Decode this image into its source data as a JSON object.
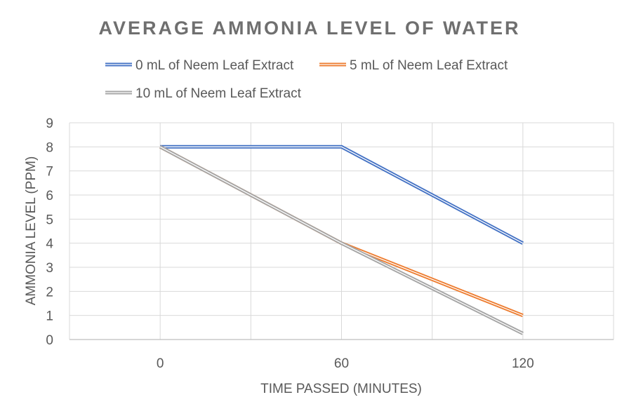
{
  "chart_data": {
    "type": "line",
    "title": "AVERAGE AMMONIA LEVEL OF WATER",
    "xlabel": "TIME PASSED (MINUTES)",
    "ylabel": "AMMONIA LEVEL (PPM)",
    "x": [
      0,
      60,
      120
    ],
    "x_tick_labels": [
      "0",
      "60",
      "120"
    ],
    "xlim": [
      -30,
      150
    ],
    "ylim": [
      0,
      9
    ],
    "y_ticks": [
      0,
      1,
      2,
      3,
      4,
      5,
      6,
      7,
      8,
      9
    ],
    "grid": true,
    "legend_position": "top",
    "series": [
      {
        "name": "0 mL of Neem Leaf Extract",
        "values": [
          8,
          8,
          4
        ],
        "color": "#4472c4"
      },
      {
        "name": "5 mL of Neem Leaf Extract",
        "values": [
          8,
          4,
          1
        ],
        "color": "#ed7d31"
      },
      {
        "name": "10 mL of Neem Leaf Extract",
        "values": [
          8,
          4,
          0.25
        ],
        "color": "#a5a5a5"
      }
    ]
  }
}
